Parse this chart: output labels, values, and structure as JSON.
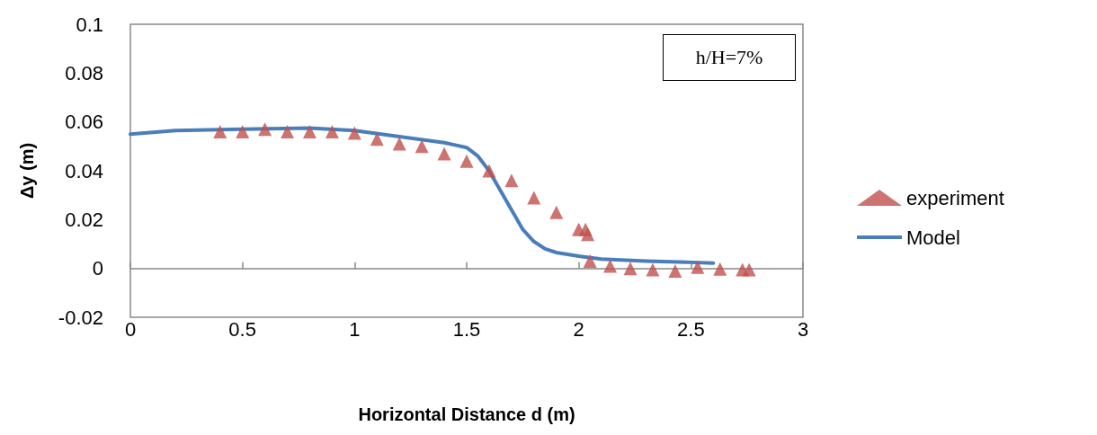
{
  "chart_data": {
    "type": "scatter",
    "xlabel": "Horizontal Distance d (m)",
    "ylabel": "Δy (m)",
    "xlim": [
      0,
      3
    ],
    "xticks": [
      0,
      0.5,
      1,
      1.5,
      2,
      2.5,
      3
    ],
    "ylim": [
      -0.02,
      0.1
    ],
    "yticks": [
      -0.02,
      0,
      0.02,
      0.04,
      0.06,
      0.08,
      0.1
    ],
    "legend": "right",
    "annotations": [
      "h/H=7%"
    ],
    "series": [
      {
        "name": "experiment",
        "marker": "triangle",
        "color": "#c0504d",
        "x": [
          0.4,
          0.5,
          0.6,
          0.7,
          0.8,
          0.9,
          1.0,
          1.1,
          1.2,
          1.3,
          1.4,
          1.5,
          1.6,
          1.7,
          1.8,
          1.9,
          2.0,
          2.03,
          2.04,
          2.05,
          2.14,
          2.23,
          2.33,
          2.43,
          2.53,
          2.63,
          2.73,
          2.76
        ],
        "values": [
          0.056,
          0.056,
          0.057,
          0.056,
          0.056,
          0.056,
          0.0555,
          0.053,
          0.051,
          0.05,
          0.047,
          0.044,
          0.04,
          0.036,
          0.029,
          0.023,
          0.016,
          0.016,
          0.014,
          0.003,
          0.001,
          0,
          -0.0005,
          -0.001,
          0.0005,
          -0.0002,
          -0.0005,
          -0.0005
        ]
      },
      {
        "name": "Model",
        "type": "line",
        "marker": "none",
        "line_style": "solid",
        "color": "#4a7ebb",
        "x": [
          0,
          0.2,
          0.5,
          0.8,
          1.0,
          1.2,
          1.4,
          1.5,
          1.55,
          1.6,
          1.65,
          1.7,
          1.75,
          1.8,
          1.85,
          1.9,
          2.0,
          2.1,
          2.3,
          2.5,
          2.6
        ],
        "values": [
          0.055,
          0.0565,
          0.057,
          0.0575,
          0.0565,
          0.054,
          0.0515,
          0.0495,
          0.046,
          0.04,
          0.032,
          0.024,
          0.016,
          0.011,
          0.008,
          0.0065,
          0.005,
          0.0038,
          0.003,
          0.0025,
          0.0022
        ]
      }
    ]
  }
}
